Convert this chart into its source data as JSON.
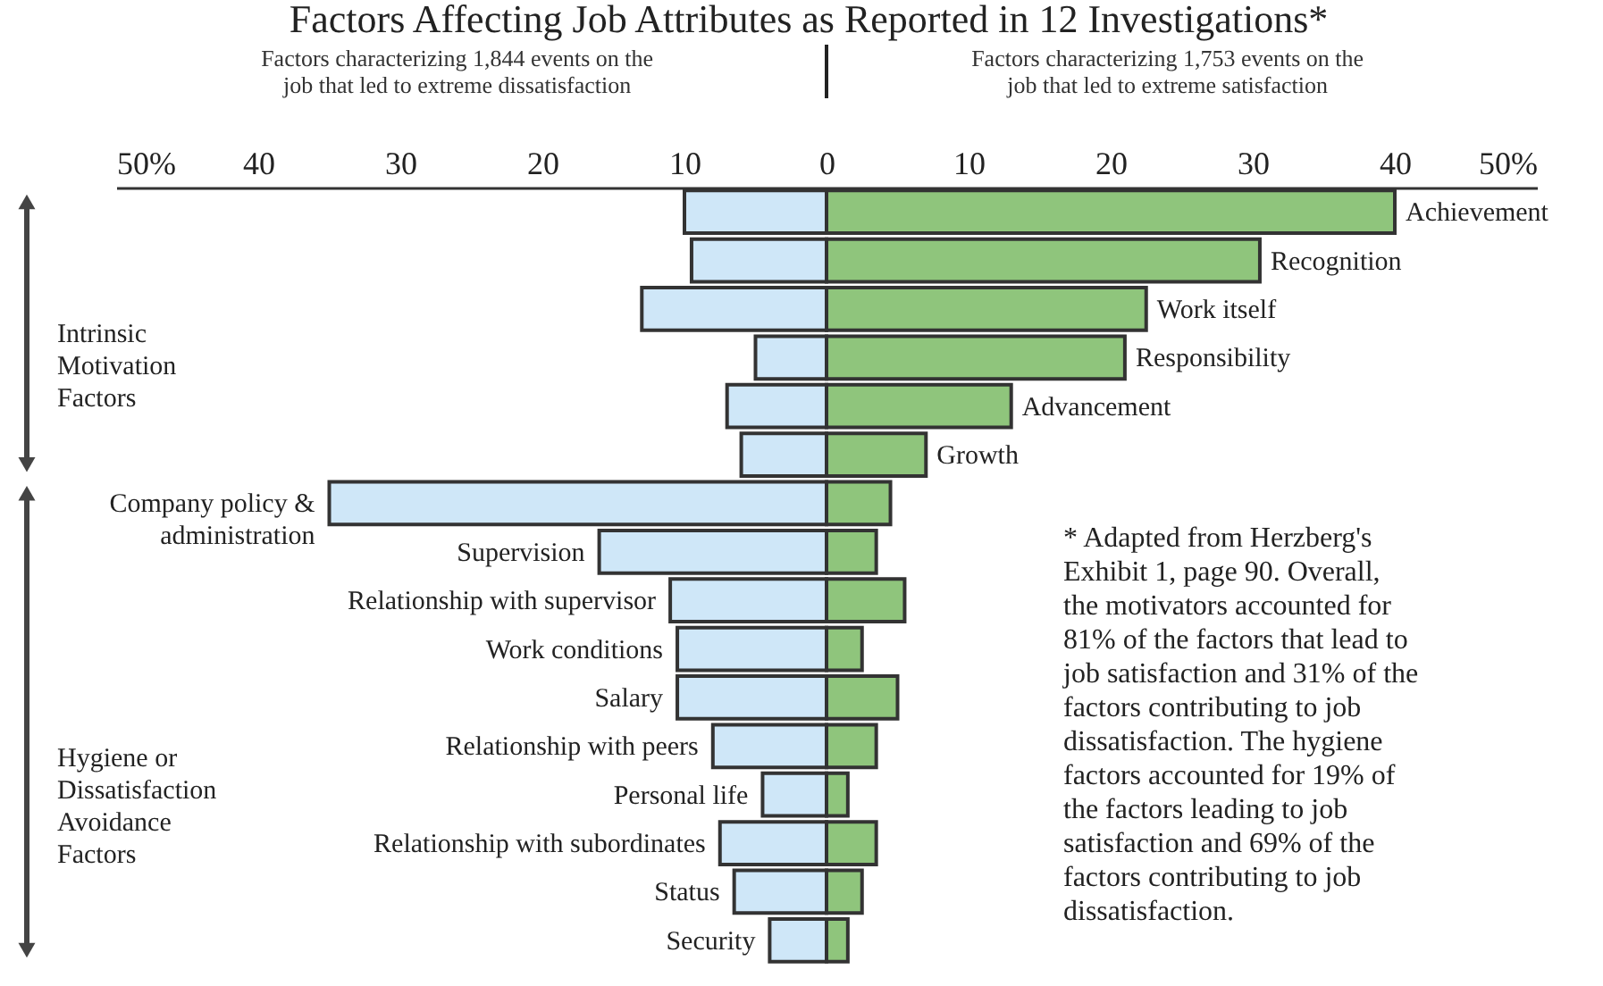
{
  "chart_data": {
    "type": "bar",
    "orientation": "horizontal",
    "title": "Factors Affecting Job Attributes as Reported in 12 Investigations*",
    "categories": [
      "Achievement",
      "Recognition",
      "Work itself",
      "Responsibility",
      "Advancement",
      "Growth",
      "Company policy & administration",
      "Supervision",
      "Relationship with supervisor",
      "Work conditions",
      "Salary",
      "Relationship with peers",
      "Personal life",
      "Relationship with subordinates",
      "Status",
      "Security"
    ],
    "series": [
      {
        "color": "#cfe7f8",
        "values": [
          -10,
          -9.5,
          -13,
          -5,
          -7,
          -6,
          -35,
          -16,
          -11,
          -10.5,
          -10.5,
          -8,
          -4.5,
          -7.5,
          -6.5,
          -4
        ]
      },
      {
        "color": "#8fc57c",
        "values": [
          40,
          30.5,
          22.5,
          21,
          13,
          7,
          4.5,
          3.5,
          5.5,
          2.5,
          5,
          3.5,
          1.5,
          3.5,
          2.5,
          1.5
        ]
      }
    ],
    "xlim": [
      -50,
      50
    ],
    "xticks": [
      {
        "value": -50,
        "label": "50%"
      },
      {
        "value": -40,
        "label": "40"
      },
      {
        "value": -30,
        "label": "30"
      },
      {
        "value": -20,
        "label": "20"
      },
      {
        "value": -10,
        "label": "10"
      },
      0,
      10,
      20,
      30,
      40,
      {
        "value": 50,
        "label": "50%"
      }
    ],
    "stacked": true,
    "grid": false,
    "annotations": [
      "Intrinsic Motivation Factors",
      "Hygiene or Dissatisfaction Avoidance Factors",
      "* Adapted from Herzberg's Exhibit 1, page 90. Overall, the motivators accounted for 81% of the factors that lead to job satisfaction and 31% of the factors contributing to job dissatisfaction.  The hygiene factors accounted for 19% of the factors leading to job satisfaction and 69% of the factors contributing to job dissatisfaction.",
      "Factors characterizing 1,844 events on the job that led to extreme dissatisfaction",
      "Factors characterizing 1,753 events on the job that led to extreme satisfaction"
    ]
  }
}
